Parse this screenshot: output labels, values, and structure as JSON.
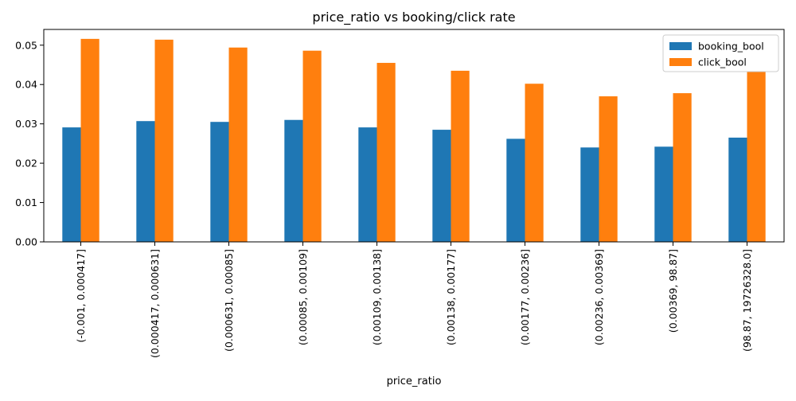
{
  "colors": {
    "booking_bool": "#1f77b4",
    "click_bool": "#ff7f0e"
  },
  "chart_data": {
    "type": "bar",
    "title": "price_ratio vs booking/click rate",
    "xlabel": "price_ratio",
    "ylabel": "",
    "ylim": [
      0,
      0.054
    ],
    "yticks": [
      "0.00",
      "0.01",
      "0.02",
      "0.03",
      "0.04",
      "0.05"
    ],
    "grid": false,
    "legend_position": "top-right",
    "categories": [
      "(-0.001, 0.000417]",
      "(0.000417, 0.000631]",
      "(0.000631, 0.00085]",
      "(0.00085, 0.00109]",
      "(0.00109, 0.00138]",
      "(0.00138, 0.00177]",
      "(0.00177, 0.00236]",
      "(0.00236, 0.00369]",
      "(0.00369, 98.87]",
      "(98.87, 19726328.0]"
    ],
    "series": [
      {
        "name": "booking_bool",
        "values": [
          0.0291,
          0.0307,
          0.0305,
          0.031,
          0.0291,
          0.0285,
          0.0262,
          0.024,
          0.0242,
          0.0265
        ]
      },
      {
        "name": "click_bool",
        "values": [
          0.0516,
          0.0514,
          0.0494,
          0.0486,
          0.0455,
          0.0435,
          0.0402,
          0.037,
          0.0378,
          0.0432
        ]
      }
    ]
  }
}
